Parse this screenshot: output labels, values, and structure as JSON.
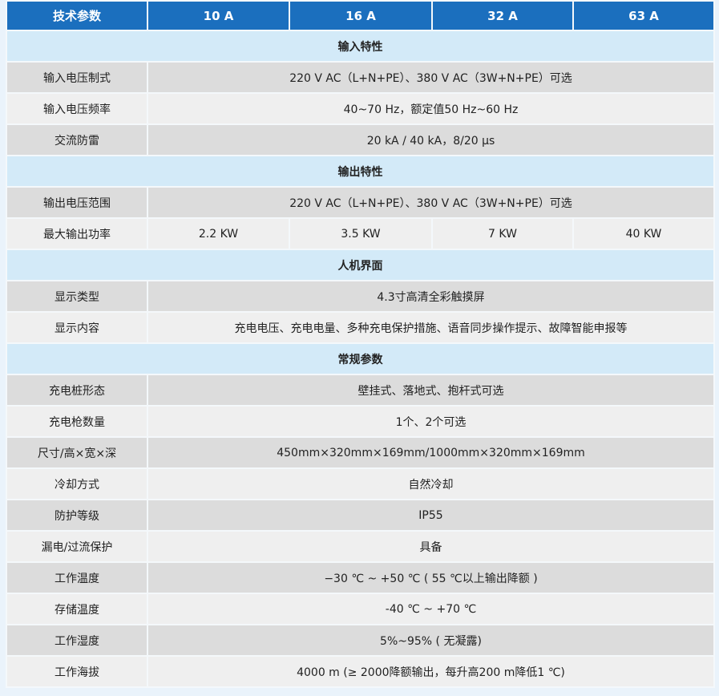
{
  "header": [
    "技术参数",
    "10 A",
    "16 A",
    "32 A",
    "63 A"
  ],
  "sections": [
    {
      "title": "输入特性",
      "rows": [
        {
          "label": "输入电压制式",
          "value": "220 V AC（L+N+PE）、380 V AC（3W+N+PE）可选"
        },
        {
          "label": "输入电压频率",
          "value": "40~70 Hz，额定值50 Hz~60 Hz"
        },
        {
          "label": "交流防雷",
          "value": "20 kA / 40 kA，8/20 μs"
        }
      ]
    },
    {
      "title": "输出特性",
      "rows": [
        {
          "label": "输出电压范围",
          "value": "220 V AC（L+N+PE）、380 V AC（3W+N+PE）可选"
        },
        {
          "label": "最大输出功率",
          "values": [
            "2.2 KW",
            "3.5 KW",
            "7 KW",
            "40 KW"
          ]
        }
      ]
    },
    {
      "title": "人机界面",
      "rows": [
        {
          "label": "显示类型",
          "value": "4.3寸高清全彩触摸屏"
        },
        {
          "label": "显示内容",
          "value": "充电电压、充电电量、多种充电保护措施、语音同步操作提示、故障智能申报等"
        }
      ]
    },
    {
      "title": "常规参数",
      "rows": [
        {
          "label": "充电桩形态",
          "value": "壁挂式、落地式、抱杆式可选"
        },
        {
          "label": "充电枪数量",
          "value": "1个、2个可选"
        },
        {
          "label": "尺寸/高×宽×深",
          "value": "450mm×320mm×169mm/1000mm×320mm×169mm"
        },
        {
          "label": "冷却方式",
          "value": "自然冷却"
        },
        {
          "label": "防护等级",
          "value": "IP55"
        },
        {
          "label": "漏电/过流保护",
          "value": "具备"
        },
        {
          "label": "工作温度",
          "value": "−30 ℃ ~ +50 ℃ ( 55 ℃以上输出降额 )"
        },
        {
          "label": "存储温度",
          "value": "-40 ℃ ~ +70 ℃"
        },
        {
          "label": "工作湿度",
          "value": "5%~95% ( 无凝露)"
        },
        {
          "label": "工作海拔",
          "value": "4000 m (≥ 2000降额输出，每升高200 m降低1 ℃)"
        }
      ]
    }
  ],
  "colors": {
    "header": "#1b6fbe",
    "section": "#d3eaf8",
    "row_dark": "#dcdcdc",
    "row_light": "#efefef"
  }
}
